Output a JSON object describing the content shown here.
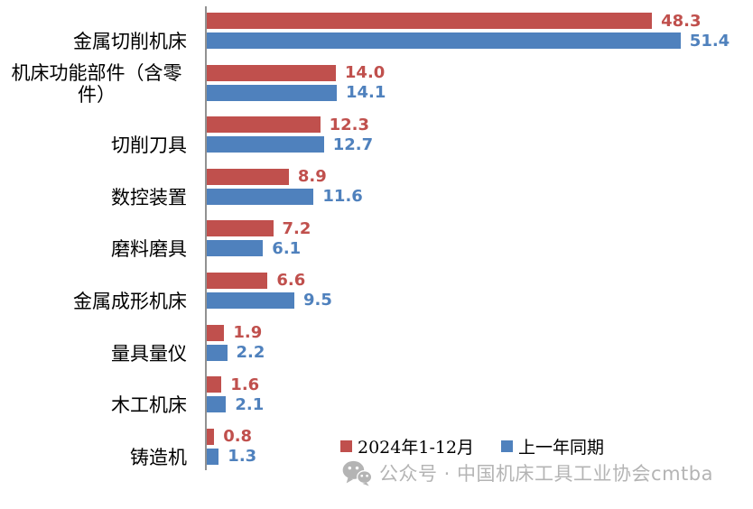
{
  "chart_data": {
    "type": "bar",
    "orientation": "horizontal",
    "title": "",
    "categories": [
      "金属切削机床",
      "机床功能部件（含零件）",
      "切削刀具",
      "数控装置",
      "磨料磨具",
      "金属成形机床",
      "量具量仪",
      "木工机床",
      "铸造机"
    ],
    "series": [
      {
        "name": "2024年1-12月",
        "color": "#C0504D",
        "values": [
          48.3,
          14.0,
          12.3,
          8.9,
          7.2,
          6.6,
          1.9,
          1.6,
          0.8
        ]
      },
      {
        "name": "上一年同期",
        "color": "#4F81BD",
        "values": [
          51.4,
          14.1,
          12.7,
          11.6,
          6.1,
          9.5,
          2.2,
          2.1,
          1.3
        ]
      }
    ],
    "xlim": [
      0,
      55
    ],
    "value_labels": true,
    "value_label_decimals": 1,
    "legend_position": "bottom-right",
    "grid": false,
    "axis_color": "#919191"
  },
  "watermark": {
    "icon": "wechat-icon",
    "text": "公众号 · 中国机床工具工业协会cmtba",
    "color": "#b4b4b4"
  }
}
